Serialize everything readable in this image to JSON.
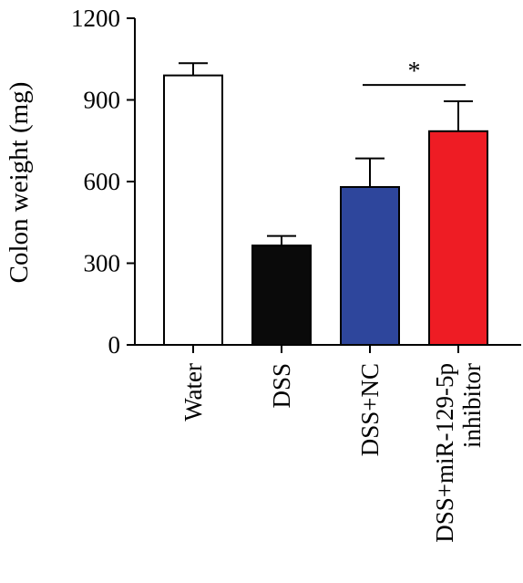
{
  "chart_data": {
    "type": "bar",
    "title": "",
    "ylabel": "Colon weight (mg)",
    "xlabel": "",
    "ylim": [
      0,
      1200
    ],
    "yticks": [
      0,
      300,
      600,
      900,
      1200
    ],
    "categories": [
      {
        "lines": [
          "Water"
        ]
      },
      {
        "lines": [
          "DSS"
        ]
      },
      {
        "lines": [
          "DSS+NC"
        ]
      },
      {
        "lines": [
          "DSS+miR-129-5p",
          "inhibitor"
        ]
      }
    ],
    "values": [
      990,
      365,
      580,
      785
    ],
    "errors": [
      45,
      35,
      105,
      110
    ],
    "colors": [
      "#ffffff",
      "#0a0a0a",
      "#2e469c",
      "#ee1c24"
    ],
    "significance": [
      {
        "from": 2,
        "to": 3,
        "label": "*",
        "level": 955
      }
    ]
  }
}
